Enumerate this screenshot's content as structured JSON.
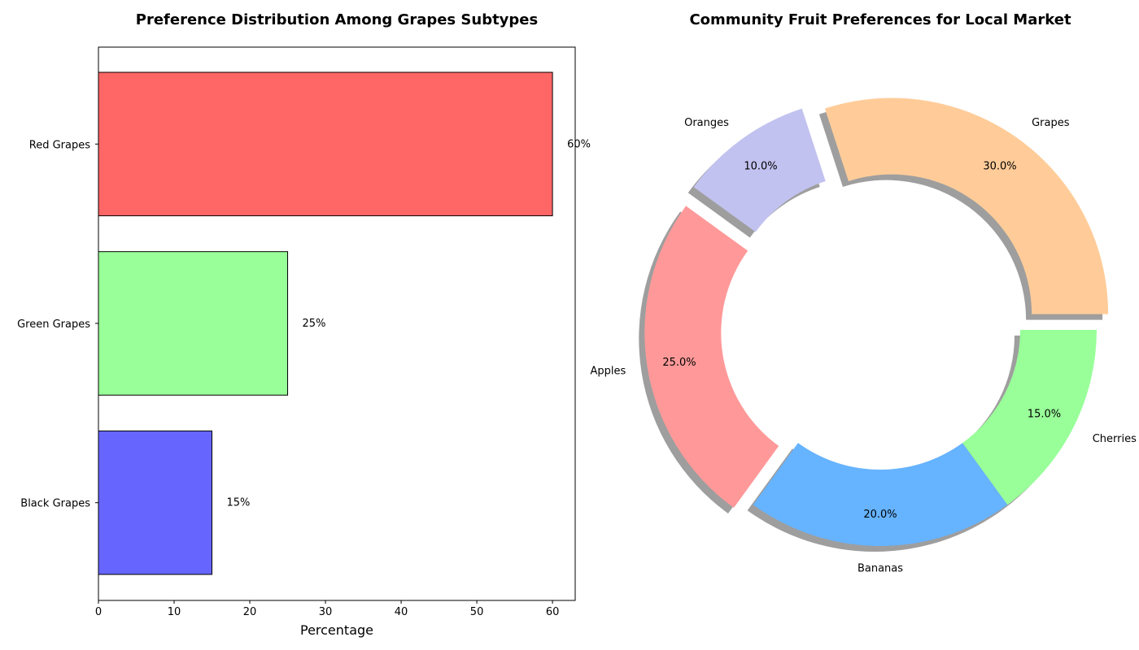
{
  "chart_data": [
    {
      "type": "bar",
      "orientation": "horizontal",
      "title": "Preference Distribution Among Grapes Subtypes",
      "xlabel": "Percentage",
      "ylabel": "",
      "categories": [
        "Red Grapes",
        "Green Grapes",
        "Black Grapes"
      ],
      "values": [
        60,
        25,
        15
      ],
      "value_labels": [
        "60%",
        "25%",
        "15%"
      ],
      "colors": [
        "#ff6666",
        "#99ff99",
        "#6666ff"
      ],
      "edgecolor": "#000000",
      "xlim": [
        0,
        63
      ],
      "xticks": [
        0,
        10,
        20,
        30,
        40,
        50,
        60
      ],
      "grid": false
    },
    {
      "type": "pie",
      "donut": true,
      "title": "Community Fruit Preferences for Local Market",
      "labels": [
        "Grapes",
        "Oranges",
        "Apples",
        "Bananas",
        "Cherries"
      ],
      "values": [
        30,
        10,
        25,
        20,
        15
      ],
      "percent_labels": [
        "30.0%",
        "10.0%",
        "25.0%",
        "20.0%",
        "15.0%"
      ],
      "colors": [
        "#ffcc99",
        "#c2c2f0",
        "#ff9999",
        "#66b3ff",
        "#99ff99"
      ],
      "exploded": [
        true,
        true,
        true,
        false,
        false
      ],
      "shadow": true
    }
  ]
}
